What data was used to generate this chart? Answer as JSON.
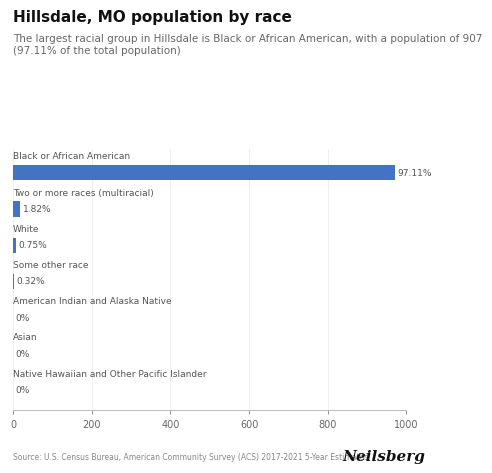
{
  "title": "Hillsdale, MO population by race",
  "subtitle_line1": "The largest racial group in Hillsdale is Black or African American, with a population of 907",
  "subtitle_line2": "(97.11% of the total population)",
  "categories": [
    "Black or African American",
    "Two or more races (multiracial)",
    "White",
    "Some other race",
    "American Indian and Alaska Native",
    "Asian",
    "Native Hawaiian and Other Pacific Islander"
  ],
  "values": [
    971.1,
    18.2,
    7.5,
    3.2,
    0,
    0,
    0
  ],
  "labels": [
    "97.11%",
    "1.82%",
    "0.75%",
    "0.32%",
    "0%",
    "0%",
    "0%"
  ],
  "bar_color": "#4472C4",
  "xlim": [
    0,
    1000
  ],
  "xticks": [
    0,
    200,
    400,
    600,
    800,
    1000
  ],
  "source_text": "Source: U.S. Census Bureau, American Community Survey (ACS) 2017-2021 5-Year Estimates",
  "brand": "Neilsberg",
  "background_color": "#ffffff",
  "title_fontsize": 11,
  "subtitle_fontsize": 7.5,
  "label_fontsize": 6.5,
  "category_fontsize": 6.5,
  "tick_fontsize": 7,
  "source_fontsize": 5.5,
  "brand_fontsize": 11
}
